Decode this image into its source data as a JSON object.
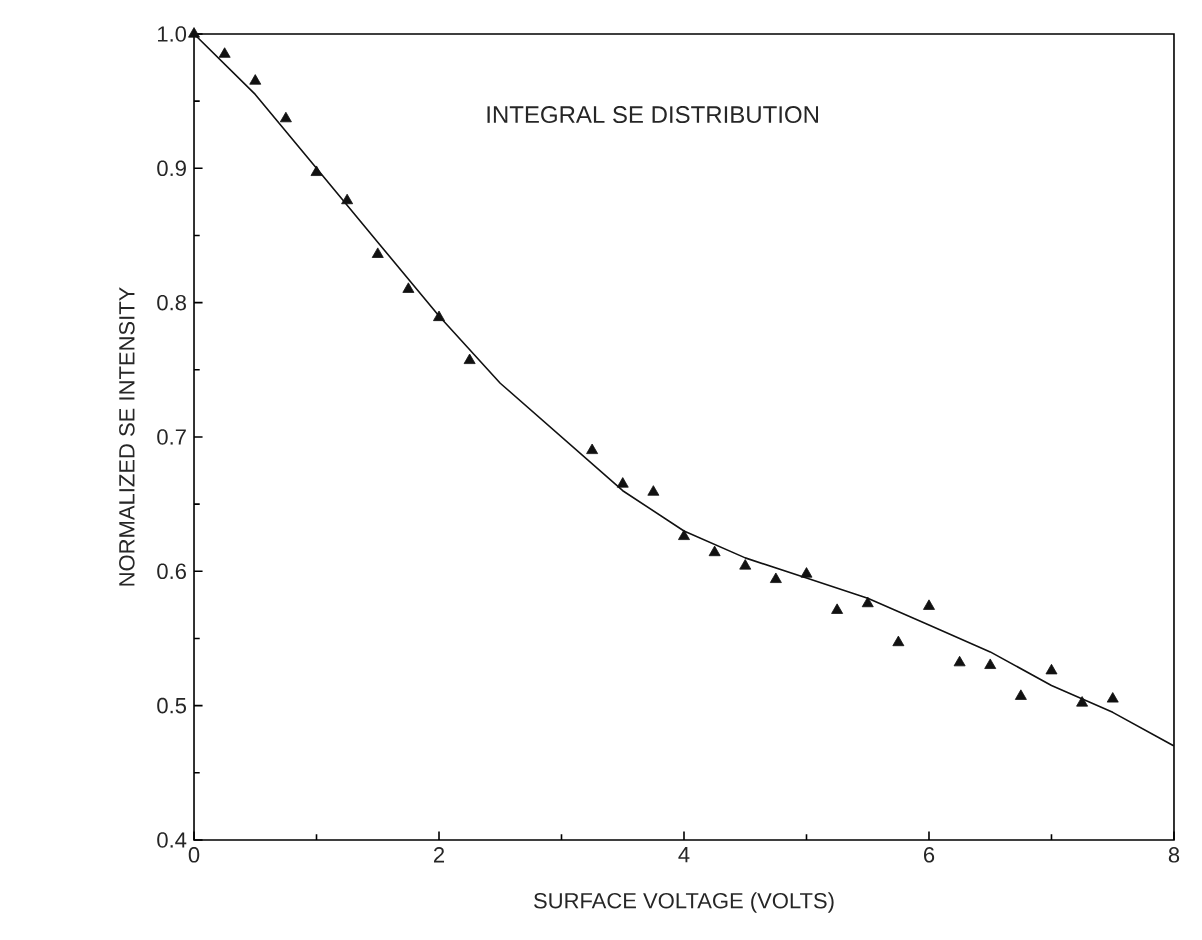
{
  "chart_data": {
    "type": "scatter",
    "xlabel": "SURFACE VOLTAGE (VOLTS)",
    "ylabel": "NORMALIZED SE INTENSITY",
    "annotations": [
      "INTEGRAL SE DISTRIBUTION"
    ],
    "xlim": [
      0,
      8
    ],
    "ylim": [
      0.4,
      1.0
    ],
    "xticks": [
      0,
      2,
      4,
      6,
      8
    ],
    "yticks": [
      0.4,
      0.5,
      0.6,
      0.7,
      0.8,
      0.9,
      {
        "value": 1.0,
        "label": "1.0"
      }
    ],
    "grid": false,
    "series": [
      {
        "marker": "triangle",
        "color": "#111111",
        "x": [
          0,
          0.25,
          0.5,
          0.75,
          1.0,
          1.25,
          1.5,
          1.75,
          2.0,
          2.25,
          3.25,
          3.5,
          3.75,
          4.0,
          4.25,
          4.5,
          4.75,
          5.0,
          5.25,
          5.5,
          5.75,
          6.0,
          6.25,
          6.5,
          6.75,
          7.0,
          7.25,
          7.5
        ],
        "values": [
          1.0,
          0.985,
          0.965,
          0.937,
          0.897,
          0.876,
          0.836,
          0.81,
          0.789,
          0.757,
          0.69,
          0.665,
          0.659,
          0.626,
          0.614,
          0.604,
          0.594,
          0.598,
          0.571,
          0.576,
          0.547,
          0.574,
          0.532,
          0.53,
          0.507,
          0.526,
          0.502,
          0.505
        ]
      },
      {
        "type": "line",
        "marker": "none",
        "line_style": "solid",
        "color": "#111111",
        "x": [
          0,
          0.5,
          1,
          1.5,
          2,
          2.5,
          3,
          3.5,
          4,
          4.5,
          5,
          5.5,
          6,
          6.5,
          7,
          7.5,
          8
        ],
        "values": [
          1.0,
          0.955,
          0.9,
          0.845,
          0.79,
          0.74,
          0.7,
          0.66,
          0.63,
          0.61,
          0.595,
          0.58,
          0.56,
          0.54,
          0.515,
          0.495,
          0.47
        ]
      }
    ]
  }
}
